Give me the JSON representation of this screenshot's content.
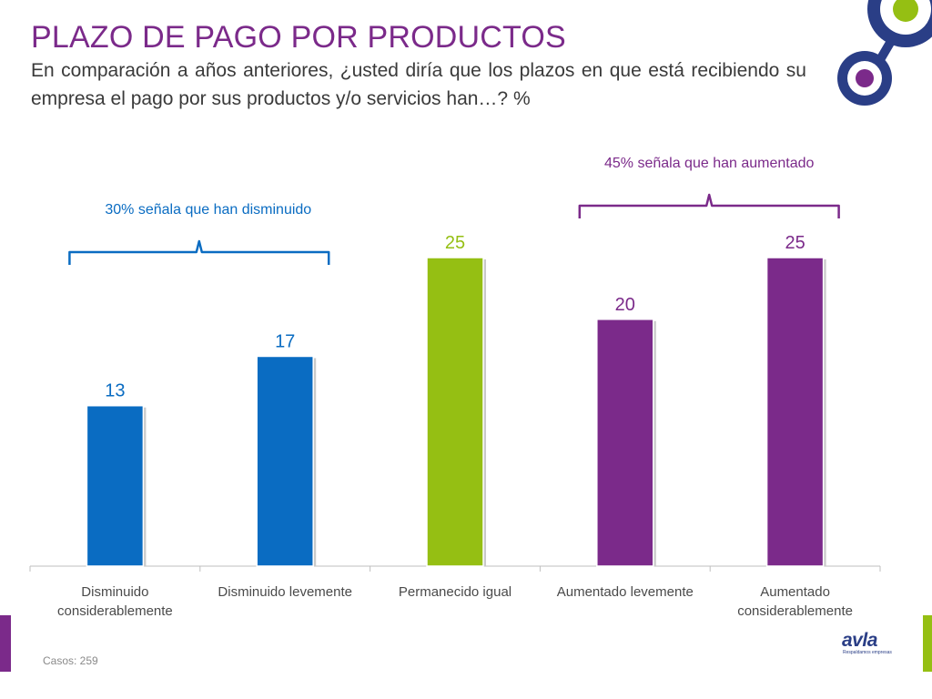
{
  "page": {
    "title": "PLAZO DE PAGO POR PRODUCTOS",
    "subtitle": "En comparación a años anteriores, ¿usted diría que los plazos en que está recibiendo su empresa el pago por sus productos y/o servicios han…? %",
    "footnote": "Casos: 259",
    "brand_word": "avla",
    "brand_sub": "Respaldamos empresas"
  },
  "colors": {
    "title": "#7b2a8a",
    "blue": "#0a6cc2",
    "green": "#95bf13",
    "purple": "#7b2a8a",
    "logo_blue": "#2a3e86"
  },
  "chart_data": {
    "type": "bar",
    "title": "",
    "xlabel": "",
    "ylabel": "",
    "ylim": [
      0,
      25
    ],
    "categories": [
      "Disminuido considerablemente",
      "Disminuido levemente",
      "Permanecido igual",
      "Aumentado levemente",
      "Aumentado considerablemente"
    ],
    "values": [
      13,
      17,
      25,
      20,
      25
    ],
    "bar_colors": [
      "#0a6cc2",
      "#0a6cc2",
      "#95bf13",
      "#7b2a8a",
      "#7b2a8a"
    ],
    "annotations": [
      {
        "text": "30% señala que han disminuido",
        "spans": [
          0,
          1
        ],
        "color": "#0a6cc2"
      },
      {
        "text": "45% señala que han aumentado",
        "spans": [
          3,
          4
        ],
        "color": "#7b2a8a"
      }
    ]
  }
}
